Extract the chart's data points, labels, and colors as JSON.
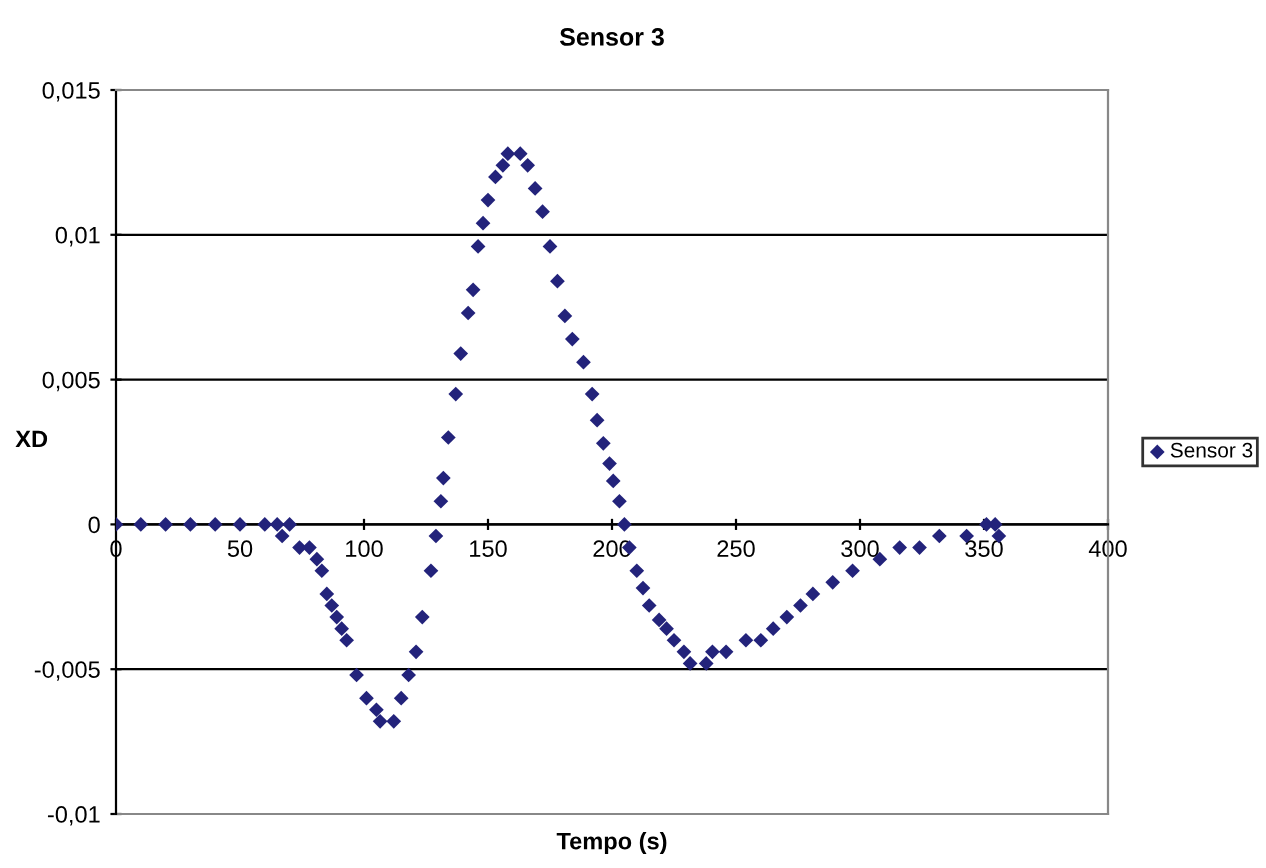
{
  "chart_data": {
    "type": "scatter",
    "title": "Sensor 3",
    "xlabel": "Tempo (s)",
    "ylabel": "XD",
    "xlim": [
      0,
      400
    ],
    "xticks": [
      0,
      50,
      100,
      150,
      200,
      250,
      300,
      350,
      400
    ],
    "ylim": [
      -0.01,
      0.015
    ],
    "yticks": [
      {
        "value": -0.01,
        "label": "-0,01"
      },
      {
        "value": -0.005,
        "label": "-0,005"
      },
      {
        "value": 0,
        "label": "0"
      },
      {
        "value": 0.005,
        "label": "0,005"
      },
      {
        "value": 0.01,
        "label": "0,01"
      },
      {
        "value": 0.015,
        "label": "0,015"
      }
    ],
    "grid": "y",
    "legend": "right",
    "marker": "diamond",
    "series": [
      {
        "name": "Sensor 3",
        "color": "#23237b",
        "x": [
          0,
          10,
          20,
          30,
          40,
          50,
          60,
          65,
          67,
          70,
          74,
          78,
          81,
          83,
          85,
          87,
          89,
          91,
          93,
          97,
          101,
          105,
          106.5,
          112,
          115,
          118,
          121,
          123.5,
          127,
          129,
          131,
          132,
          134,
          137,
          139,
          142,
          144,
          146,
          148,
          150,
          153,
          156,
          158,
          163,
          166,
          169,
          172,
          175,
          178,
          181,
          184,
          188.5,
          192,
          194,
          196.5,
          199,
          200.5,
          203,
          205,
          207,
          210,
          212.5,
          215,
          219,
          222,
          225,
          229,
          231.5,
          238,
          240.5,
          246,
          254,
          260,
          265,
          270.5,
          276,
          281,
          289,
          297,
          308,
          316,
          324,
          332,
          343,
          351,
          354.5,
          356
        ],
        "values": [
          0,
          0,
          0,
          0,
          0,
          0,
          0,
          0,
          -0.0004,
          0,
          -0.0008,
          -0.0008,
          -0.0012,
          -0.0016,
          -0.0024,
          -0.0028,
          -0.0032,
          -0.0036,
          -0.004,
          -0.0052,
          -0.006,
          -0.0064,
          -0.0068,
          -0.0068,
          -0.006,
          -0.0052,
          -0.0044,
          -0.0032,
          -0.0016,
          -0.0004,
          0.0008,
          0.0016,
          0.003,
          0.0045,
          0.0059,
          0.0073,
          0.0081,
          0.0096,
          0.0104,
          0.0112,
          0.012,
          0.0124,
          0.0128,
          0.0128,
          0.0124,
          0.0116,
          0.0108,
          0.0096,
          0.0084,
          0.0072,
          0.0064,
          0.0056,
          0.0045,
          0.0036,
          0.0028,
          0.0021,
          0.0015,
          0.0008,
          0,
          -0.0008,
          -0.0016,
          -0.0022,
          -0.0028,
          -0.0033,
          -0.0036,
          -0.004,
          -0.0044,
          -0.0048,
          -0.0048,
          -0.0044,
          -0.0044,
          -0.004,
          -0.004,
          -0.0036,
          -0.0032,
          -0.0028,
          -0.0024,
          -0.002,
          -0.0016,
          -0.0012,
          -0.0008,
          -0.0008,
          -0.0004,
          -0.0004,
          0,
          0,
          -0.0004
        ]
      }
    ]
  }
}
